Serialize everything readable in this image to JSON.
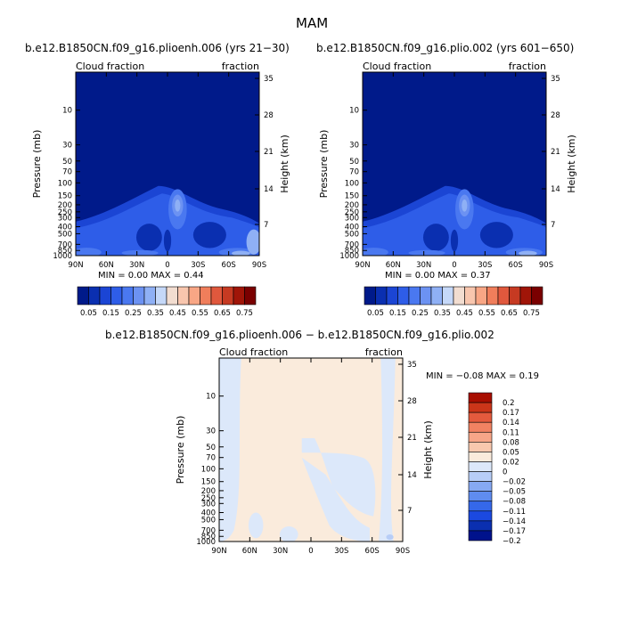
{
  "page": {
    "title": "MAM"
  },
  "colors": {
    "scale_main": [
      "#001a8a",
      "#0a2fb0",
      "#1b45d4",
      "#2e5de8",
      "#4a78f0",
      "#6c92f2",
      "#8fb0f5",
      "#c5d8f8",
      "#f2ddd0",
      "#f8c6ae",
      "#f8a685",
      "#f07e5b",
      "#e0583d",
      "#c63a22",
      "#a01508",
      "#7a0000"
    ],
    "scale_diff": [
      "#00128c",
      "#0a2fb0",
      "#1b49e0",
      "#3568ea",
      "#5f8cf0",
      "#86a9f3",
      "#b7cdf7",
      "#dce8fa",
      "#faebdc",
      "#f8c8ae",
      "#f7a688",
      "#f18262",
      "#e45a3d",
      "#cb3519",
      "#a80e00"
    ]
  },
  "chart_data": [
    {
      "type": "heatmap",
      "title": "b.e12.B1850CN.f09_g16.plioenh.006 (yrs 21−30)",
      "left_label": "Cloud fraction",
      "right_label": "fraction",
      "xlabel": "",
      "ylabel": "Pressure (mb)",
      "y2label": "Height (km)",
      "x_ticks": [
        "90N",
        "60N",
        "30N",
        "0",
        "30S",
        "60S",
        "90S"
      ],
      "y_ticks": [
        "10",
        "30",
        "50",
        "70",
        "100",
        "150",
        "200",
        "250",
        "300",
        "400",
        "500",
        "700",
        "850",
        "1000"
      ],
      "y2_ticks": [
        "35",
        "28",
        "21",
        "14",
        "7"
      ],
      "ylim": [
        1000,
        3
      ],
      "y_scale": "log",
      "min": "0.00",
      "max": "0.44",
      "stats_text": "MIN =    0.00   MAX =    0.44",
      "colorbar_labels": [
        "0.05",
        "0.15",
        "0.25",
        "0.35",
        "0.45",
        "0.55",
        "0.65",
        "0.75"
      ],
      "colorbar_levels": [
        0.05,
        0.1,
        0.15,
        0.2,
        0.25,
        0.3,
        0.35,
        0.4,
        0.45,
        0.5,
        0.55,
        0.6,
        0.65,
        0.7,
        0.75
      ]
    },
    {
      "type": "heatmap",
      "title": "b.e12.B1850CN.f09_g16.plio.002 (yrs 601−650)",
      "left_label": "Cloud fraction",
      "right_label": "fraction",
      "xlabel": "",
      "ylabel": "Pressure (mb)",
      "y2label": "Height (km)",
      "x_ticks": [
        "90N",
        "60N",
        "30N",
        "0",
        "30S",
        "60S",
        "90S"
      ],
      "y_ticks": [
        "10",
        "30",
        "50",
        "70",
        "100",
        "150",
        "200",
        "250",
        "300",
        "400",
        "500",
        "700",
        "850",
        "1000"
      ],
      "y2_ticks": [
        "35",
        "28",
        "21",
        "14",
        "7"
      ],
      "ylim": [
        1000,
        3
      ],
      "y_scale": "log",
      "min": "0.00",
      "max": "0.37",
      "stats_text": "MIN =    0.00   MAX =    0.37",
      "colorbar_labels": [
        "0.05",
        "0.15",
        "0.25",
        "0.35",
        "0.45",
        "0.55",
        "0.65",
        "0.75"
      ],
      "colorbar_levels": [
        0.05,
        0.1,
        0.15,
        0.2,
        0.25,
        0.3,
        0.35,
        0.4,
        0.45,
        0.5,
        0.55,
        0.6,
        0.65,
        0.7,
        0.75
      ]
    },
    {
      "type": "heatmap",
      "title": "b.e12.B1850CN.f09_g16.plioenh.006 − b.e12.B1850CN.f09_g16.plio.002",
      "left_label": "Cloud fraction",
      "right_label": "fraction",
      "xlabel": "",
      "ylabel": "Pressure (mb)",
      "y2label": "Height (km)",
      "x_ticks": [
        "90N",
        "60N",
        "30N",
        "0",
        "30S",
        "60S",
        "90S"
      ],
      "y_ticks": [
        "10",
        "30",
        "50",
        "70",
        "100",
        "150",
        "200",
        "250",
        "300",
        "400",
        "500",
        "700",
        "850",
        "1000"
      ],
      "y2_ticks": [
        "35",
        "28",
        "21",
        "14",
        "7"
      ],
      "ylim": [
        1000,
        3
      ],
      "y_scale": "log",
      "min": "-0.08",
      "max": "0.19",
      "stats_text": "MIN =   −0.08   MAX =    0.19",
      "colorbar_labels": [
        "0.2",
        "0.17",
        "0.14",
        "0.11",
        "0.08",
        "0.05",
        "0.02",
        "0",
        "−0.02",
        "−0.05",
        "−0.08",
        "−0.11",
        "−0.14",
        "−0.17",
        "−0.2"
      ],
      "colorbar_levels": [
        0.2,
        0.17,
        0.14,
        0.11,
        0.08,
        0.05,
        0.02,
        0,
        -0.02,
        -0.05,
        -0.08,
        -0.11,
        -0.14,
        -0.17,
        -0.2
      ]
    }
  ]
}
